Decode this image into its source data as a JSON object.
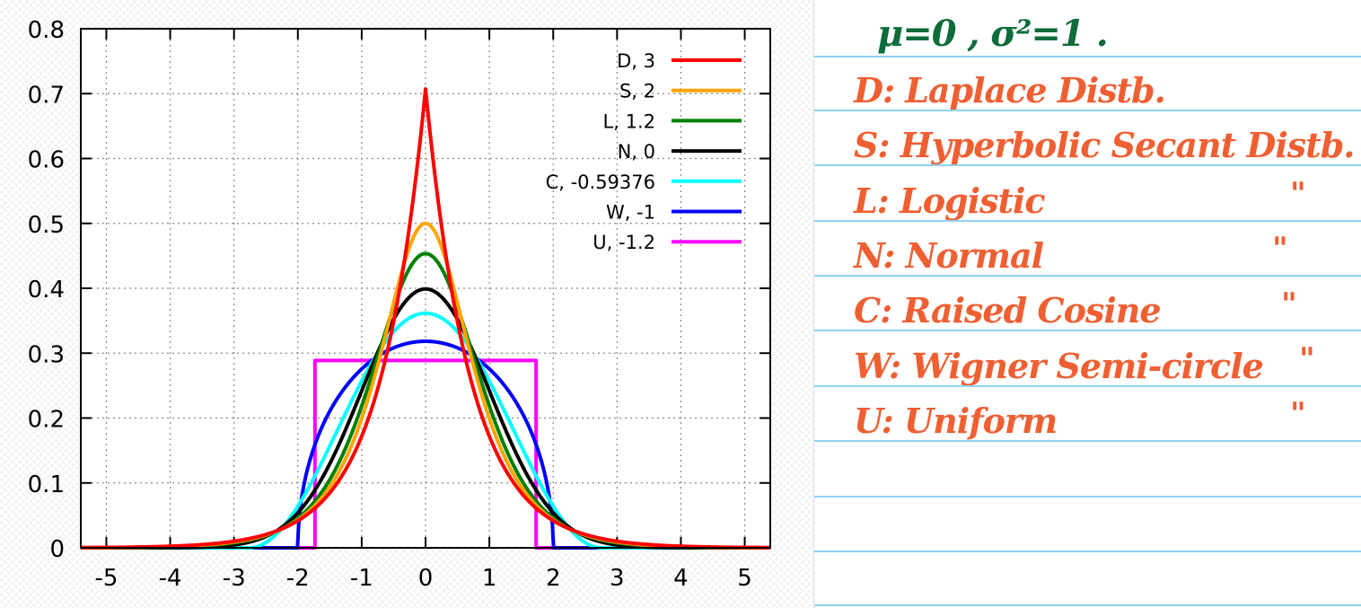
{
  "chart_data": {
    "type": "line",
    "title": "",
    "xlabel": "",
    "ylabel": "",
    "xlim": [
      -5.4,
      5.4
    ],
    "ylim": [
      0,
      0.8
    ],
    "grid": true,
    "legend_position": "top-right",
    "x_ticks": [
      "-5",
      "-4",
      "-3",
      "-2",
      "-1",
      "0",
      "1",
      "2",
      "3",
      "4",
      "5"
    ],
    "x_tick_values": [
      -5,
      -4,
      -3,
      -2,
      -1,
      0,
      1,
      2,
      3,
      4,
      5
    ],
    "y_ticks": [
      "0",
      "0.1",
      "0.2",
      "0.3",
      "0.4",
      "0.5",
      "0.6",
      "0.7",
      "0.8"
    ],
    "y_tick_values": [
      0,
      0.1,
      0.2,
      0.3,
      0.4,
      0.5,
      0.6,
      0.7,
      0.8
    ],
    "mean": 0,
    "variance": 1,
    "series": [
      {
        "name": "D,  3",
        "distribution": "laplace",
        "excess_kurtosis": 3,
        "peak": 0.707,
        "color": "#ff0000"
      },
      {
        "name": "S,  2",
        "distribution": "hyperbolic-secant",
        "excess_kurtosis": 2,
        "peak": 0.5,
        "color": "#ffa500"
      },
      {
        "name": "L,  1.2",
        "distribution": "logistic",
        "excess_kurtosis": 1.2,
        "peak": 0.453,
        "color": "#008000"
      },
      {
        "name": "N,  0",
        "distribution": "normal",
        "excess_kurtosis": 0,
        "peak": 0.399,
        "color": "#000000"
      },
      {
        "name": "C, -0.59376",
        "distribution": "raised-cosine",
        "excess_kurtosis": -0.59376,
        "peak": 0.362,
        "color": "#00ffff"
      },
      {
        "name": "W, -1",
        "distribution": "wigner-semicircle",
        "excess_kurtosis": -1,
        "peak": 0.318,
        "color": "#0000ff"
      },
      {
        "name": "U, -1.2",
        "distribution": "uniform",
        "excess_kurtosis": -1.2,
        "peak": 0.289,
        "color": "#ff00ff"
      }
    ]
  },
  "notes": {
    "header": "μ=0 , σ²=1 .",
    "lines": [
      {
        "text": "D: Laplace Distb.",
        "ditto": ""
      },
      {
        "text": "S: Hyperbolic Secant Distb.",
        "ditto": ""
      },
      {
        "text": "L: Logistic",
        "ditto": "\""
      },
      {
        "text": "N:  Normal",
        "ditto": "\""
      },
      {
        "text": "C: Raised Cosine",
        "ditto": "\""
      },
      {
        "text": "W: Wigner Semi-circle",
        "ditto": "\""
      },
      {
        "text": "U: Uniform",
        "ditto": "\""
      }
    ],
    "header_color": "#0e6b3a",
    "ink_color": "#ef5f32"
  }
}
